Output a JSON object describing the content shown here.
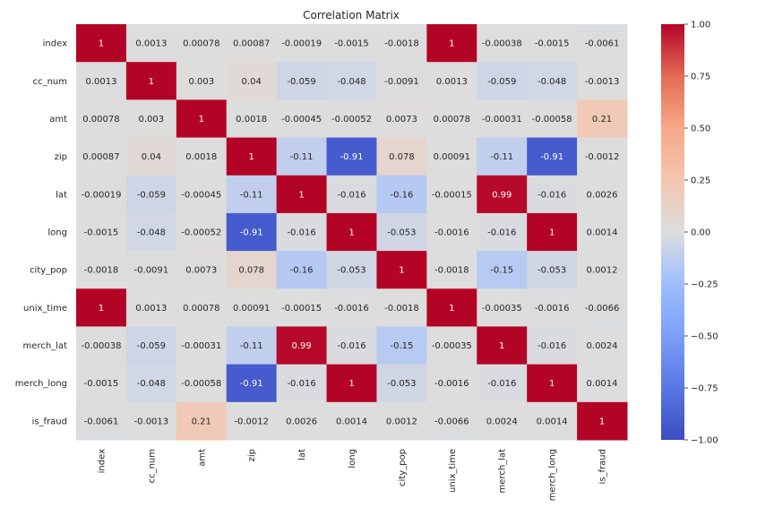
{
  "chart_data": {
    "type": "heatmap",
    "title": "Correlation Matrix",
    "xlabel": "",
    "ylabel": "",
    "variables": [
      "index",
      "cc_num",
      "amt",
      "zip",
      "lat",
      "long",
      "city_pop",
      "unix_time",
      "merch_lat",
      "merch_long",
      "is_fraud"
    ],
    "labels": [
      [
        "1",
        "0.0013",
        "0.00078",
        "0.00087",
        "-0.00019",
        "-0.0015",
        "-0.0018",
        "1",
        "-0.00038",
        "-0.0015",
        "-0.0061"
      ],
      [
        "0.0013",
        "1",
        "0.003",
        "0.04",
        "-0.059",
        "-0.048",
        "-0.0091",
        "0.0013",
        "-0.059",
        "-0.048",
        "-0.0013"
      ],
      [
        "0.00078",
        "0.003",
        "1",
        "0.0018",
        "-0.00045",
        "-0.00052",
        "0.0073",
        "0.00078",
        "-0.00031",
        "-0.00058",
        "0.21"
      ],
      [
        "0.00087",
        "0.04",
        "0.0018",
        "1",
        "-0.11",
        "-0.91",
        "0.078",
        "0.00091",
        "-0.11",
        "-0.91",
        "-0.0012"
      ],
      [
        "-0.00019",
        "-0.059",
        "-0.00045",
        "-0.11",
        "1",
        "-0.016",
        "-0.16",
        "-0.00015",
        "0.99",
        "-0.016",
        "0.0026"
      ],
      [
        "-0.0015",
        "-0.048",
        "-0.00052",
        "-0.91",
        "-0.016",
        "1",
        "-0.053",
        "-0.0016",
        "-0.016",
        "1",
        "0.0014"
      ],
      [
        "-0.0018",
        "-0.0091",
        "0.0073",
        "0.078",
        "-0.16",
        "-0.053",
        "1",
        "-0.0018",
        "-0.15",
        "-0.053",
        "0.0012"
      ],
      [
        "1",
        "0.0013",
        "0.00078",
        "0.00091",
        "-0.00015",
        "-0.0016",
        "-0.0018",
        "1",
        "-0.00035",
        "-0.0016",
        "-0.0066"
      ],
      [
        "-0.00038",
        "-0.059",
        "-0.00031",
        "-0.11",
        "0.99",
        "-0.016",
        "-0.15",
        "-0.00035",
        "1",
        "-0.016",
        "0.0024"
      ],
      [
        "-0.0015",
        "-0.048",
        "-0.00058",
        "-0.91",
        "-0.016",
        "1",
        "-0.053",
        "-0.0016",
        "-0.016",
        "1",
        "0.0014"
      ],
      [
        "-0.0061",
        "-0.0013",
        "0.21",
        "-0.0012",
        "0.0026",
        "0.0014",
        "0.0012",
        "-0.0066",
        "0.0024",
        "0.0014",
        "1"
      ]
    ],
    "colorscale": "coolwarm",
    "vmin": -1.0,
    "vmax": 1.0,
    "colorbar_ticks": [
      "1.00",
      "0.75",
      "0.50",
      "0.25",
      "0.00",
      "−0.25",
      "−0.50",
      "−0.75",
      "−1.00"
    ],
    "grid": false,
    "colorbar": "right"
  }
}
